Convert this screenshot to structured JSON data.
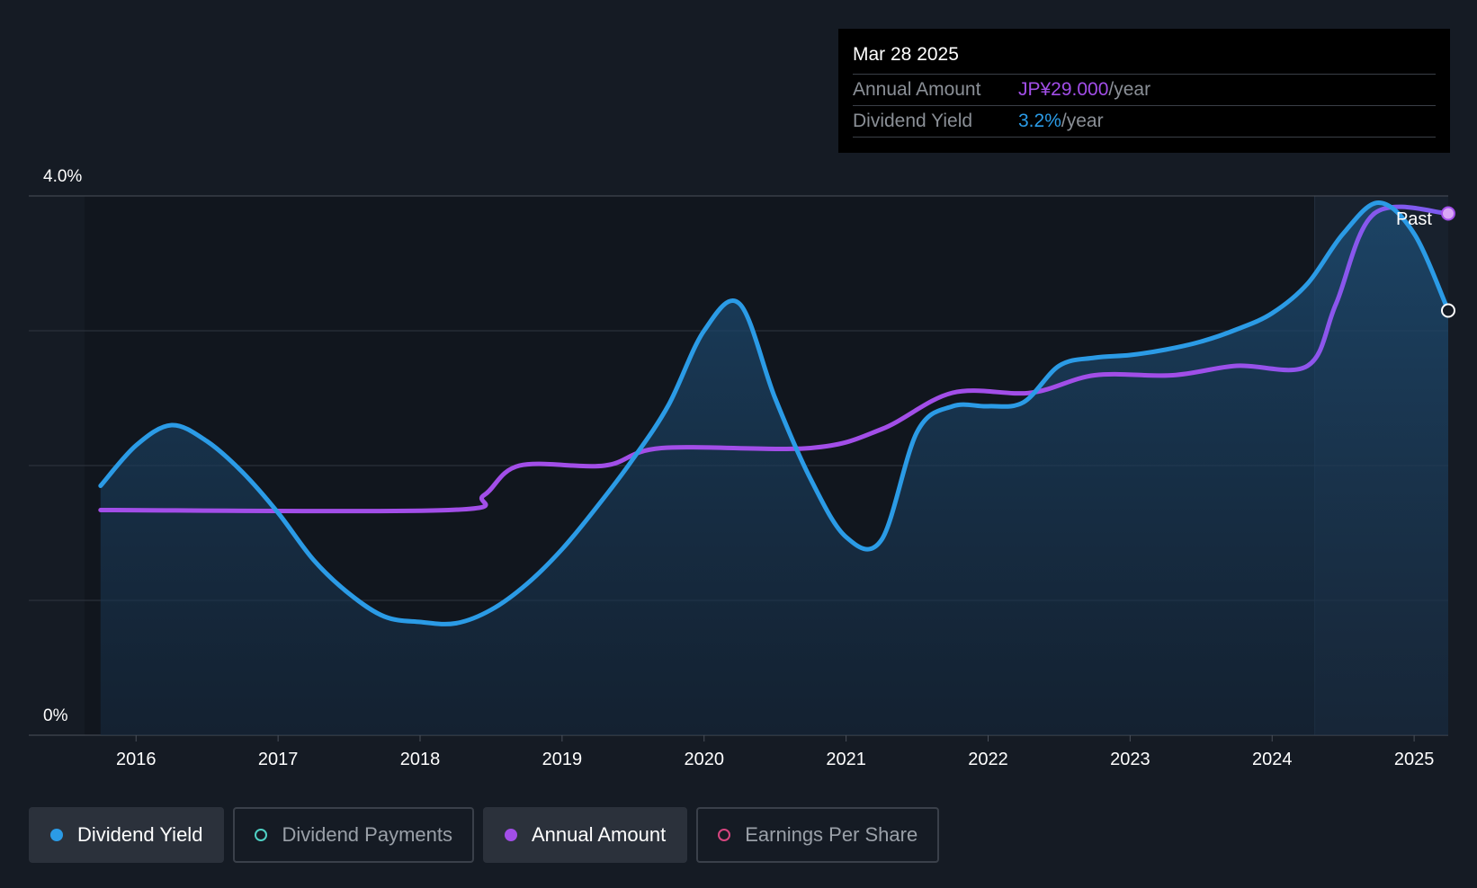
{
  "tooltip": {
    "date": "Mar 28 2025",
    "rows": [
      {
        "label": "Annual Amount",
        "value": "JP¥29.000",
        "unit": "/year",
        "color": "#a24ee8"
      },
      {
        "label": "Dividend Yield",
        "value": "3.2%",
        "unit": "/year",
        "color": "#2b9be6"
      }
    ]
  },
  "legend": [
    {
      "label": "Dividend Yield",
      "active": true,
      "color": "#2b9be6",
      "filled": true
    },
    {
      "label": "Dividend Payments",
      "active": false,
      "color": "#4fd1c5",
      "filled": false
    },
    {
      "label": "Annual Amount",
      "active": true,
      "color": "#a24ee8",
      "filled": true
    },
    {
      "label": "Earnings Per Share",
      "active": false,
      "color": "#d6457f",
      "filled": false
    }
  ],
  "chart_data": {
    "type": "line",
    "y_tick_labels": [
      "4.0%",
      "0%"
    ],
    "ylim": [
      0,
      4.0
    ],
    "x_tick_labels": [
      "2016",
      "2017",
      "2018",
      "2019",
      "2020",
      "2021",
      "2022",
      "2023",
      "2024",
      "2025"
    ],
    "xlim": [
      2015.65,
      2025.24
    ],
    "grid": true,
    "past_label": "Past",
    "past_start": 2024.3,
    "colors": {
      "yield": "#2b9be6",
      "amount_start": "#a24ee8",
      "amount_end": "#7b5cf0"
    },
    "series": [
      {
        "name": "Dividend Yield",
        "unit": "%",
        "x": [
          2015.75,
          2016.0,
          2016.25,
          2016.5,
          2016.75,
          2017.0,
          2017.25,
          2017.5,
          2017.75,
          2018.0,
          2018.25,
          2018.5,
          2018.75,
          2019.0,
          2019.25,
          2019.5,
          2019.75,
          2020.0,
          2020.25,
          2020.5,
          2020.75,
          2021.0,
          2021.25,
          2021.5,
          2021.75,
          2022.0,
          2022.25,
          2022.5,
          2022.75,
          2023.0,
          2023.25,
          2023.5,
          2023.75,
          2024.0,
          2024.25,
          2024.5,
          2024.75,
          2025.0,
          2025.24
        ],
        "values": [
          1.85,
          2.15,
          2.3,
          2.18,
          1.95,
          1.65,
          1.3,
          1.05,
          0.88,
          0.84,
          0.83,
          0.93,
          1.12,
          1.38,
          1.7,
          2.05,
          2.45,
          3.0,
          3.2,
          2.5,
          1.9,
          1.47,
          1.45,
          2.25,
          2.44,
          2.44,
          2.47,
          2.74,
          2.8,
          2.82,
          2.86,
          2.92,
          3.01,
          3.13,
          3.35,
          3.72,
          3.95,
          3.72,
          3.15
        ]
      },
      {
        "name": "Annual Amount",
        "x": [
          2015.75,
          2018.2,
          2018.45,
          2018.7,
          2019.3,
          2019.7,
          2020.75,
          2021.25,
          2021.75,
          2022.3,
          2022.75,
          2023.3,
          2023.75,
          2024.25,
          2024.45,
          2024.72,
          2025.24
        ],
        "values": [
          1.67,
          1.67,
          1.78,
          2.0,
          2.0,
          2.13,
          2.13,
          2.27,
          2.54,
          2.54,
          2.67,
          2.67,
          2.74,
          2.74,
          3.2,
          3.87,
          3.87
        ]
      }
    ]
  }
}
